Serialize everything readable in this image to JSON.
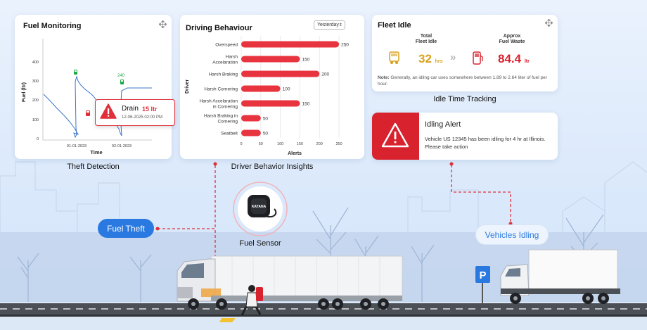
{
  "fuel_monitoring": {
    "title": "Fuel Monitoring",
    "y_axis_label": "Fuel (ltr)",
    "x_axis_label": "Time",
    "y_ticks": [
      "400",
      "300",
      "200",
      "100",
      "0"
    ],
    "x_ticks": [
      "01-01-2023",
      "02-01-2023"
    ],
    "peak_label": "240",
    "drain_label": "Drain",
    "drain_amount": "15 ltr",
    "drain_time": "12-06-2025 02:00 PM",
    "caption": "Theft Detection"
  },
  "driving_behaviour": {
    "title": "Driving Behaviour",
    "select_value": "Yesterday",
    "caption": "Driver Behavior Insights",
    "bar_color": "#e8343f"
  },
  "chart_data": {
    "type": "bar",
    "orientation": "horizontal",
    "categories": [
      "Overspeed",
      "Harsh Acceleration",
      "Harsh Braking",
      "Harsh Cornering",
      "Harsh Acceleration in Cornering",
      "Harsh Braking in Cornering",
      "Seatbelt"
    ],
    "category_lines": [
      [
        "Overspeed"
      ],
      [
        "Harsh",
        "Accelaration"
      ],
      [
        "Harsh Braking"
      ],
      [
        "Harsh Cornering"
      ],
      [
        "Harsh Accelaration",
        "in Cornering"
      ],
      [
        "Harsh Braking in",
        "Cornering"
      ],
      [
        "Seatbelt"
      ]
    ],
    "values": [
      250,
      150,
      200,
      100,
      150,
      50,
      50
    ],
    "value_labels": [
      "250",
      "150",
      "200",
      "100",
      "150",
      "50",
      "50"
    ],
    "x_ticks": [
      "0",
      "50",
      "100",
      "150",
      "200",
      "250"
    ],
    "xlim": [
      0,
      275
    ],
    "xlabel": "Alerts",
    "ylabel": "Driver",
    "grid": true
  },
  "fleet_idle": {
    "title": "Fleet Idle",
    "total_label_1": "Total",
    "total_label_2": "Fleet Idle",
    "total_value": "32",
    "total_unit": "hrs",
    "waste_label_1": "Approx",
    "waste_label_2": "Fuel Waste",
    "waste_value": "84.4",
    "waste_unit": "ltr",
    "note_prefix": "Note:",
    "note_text": " Generally, an idling car uses somewhere between 1.89 to 2.64 liter of fuel per hour.",
    "caption": "Idle Time Tracking",
    "idle_color": "#d9a21b",
    "waste_color": "#d8232f"
  },
  "idling_alert": {
    "title": "Idling Alert",
    "message": "Vehicle  US 12345 has been idling for 4 hr at Illinois. Please take action",
    "color": "#d8232f"
  },
  "labels": {
    "fuel_theft": "Fuel Theft",
    "fuel_sensor": "Fuel Sensor",
    "vehicles_idling": "Vehicles Idling",
    "sensor_brand": "KATANA",
    "parking_letter": "P"
  }
}
